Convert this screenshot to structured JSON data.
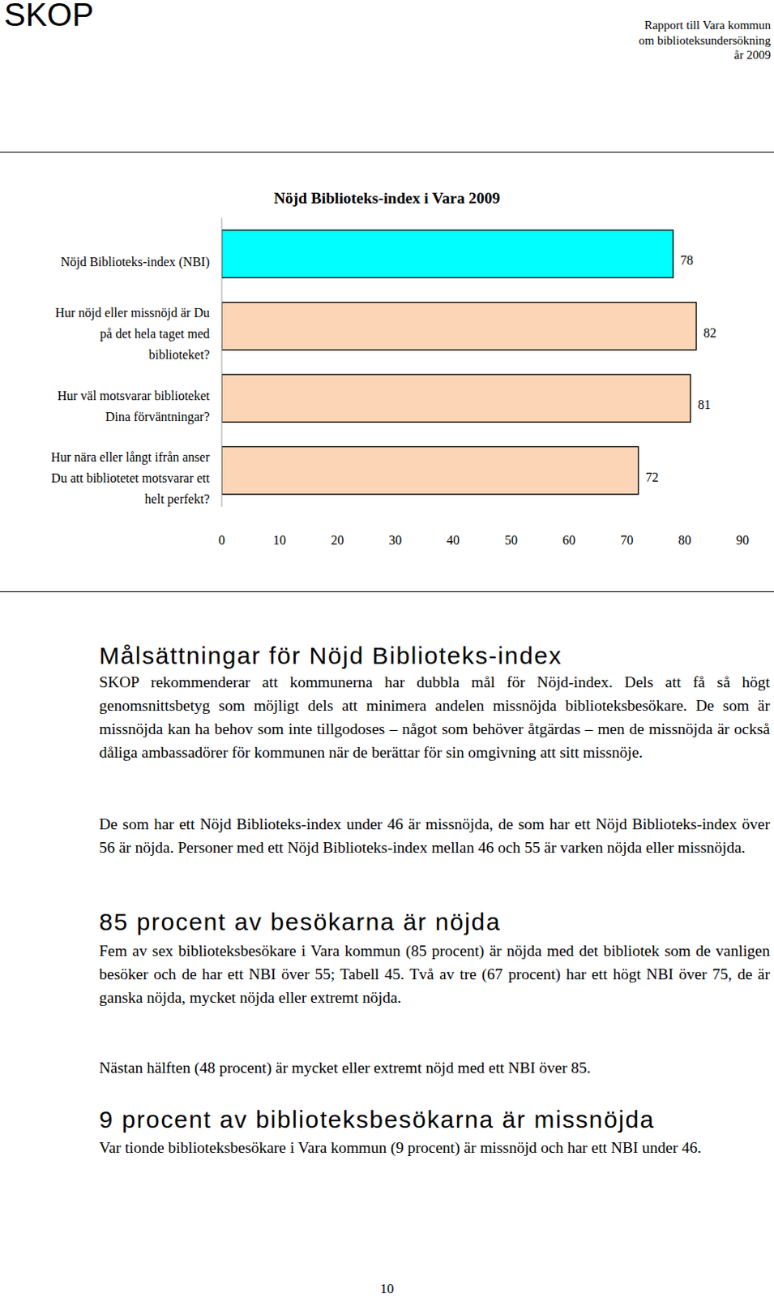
{
  "header": {
    "logo": "SKOP",
    "report": [
      "Rapport till Vara kommun",
      "om biblioteksundersökning",
      "år 2009"
    ]
  },
  "chart_data": {
    "type": "bar",
    "orientation": "horizontal",
    "title": "Nöjd Biblioteks-index i Vara 2009",
    "categories": [
      "Nöjd Biblioteks-index (NBI)",
      "Hur nöjd eller missnöjd är Du på det hela taget med biblioteket?",
      "Hur väl motsvarar biblioteket Dina förväntningar?",
      "Hur nära eller långt ifrån anser Du att bibliotetet motsvarar ett helt perfekt?"
    ],
    "values": [
      78,
      82,
      81,
      72
    ],
    "colors": [
      "#00ffff",
      "#fbd5b5",
      "#fbd5b5",
      "#fbd5b5"
    ],
    "xlim": [
      0,
      90
    ],
    "xticks": [
      0,
      10,
      20,
      30,
      40,
      50,
      60,
      70,
      80,
      90
    ],
    "data_labels": true
  },
  "sections": [
    {
      "heading": "Målsättningar för Nöjd Biblioteks-index",
      "paragraphs": [
        "SKOP rekommenderar att kommunerna har dubbla mål för Nöjd-index. Dels att få så högt genomsnittsbetyg som möjligt dels att minimera andelen missnöjda biblioteksbesökare. De som är missnöjda kan ha behov som inte tillgodoses – något som behöver åtgärdas – men de missnöjda är också dåliga ambassadörer för kommunen när de berättar för sin omgivning att sitt missnöje.",
        "De som har ett Nöjd Biblioteks-index under 46 är missnöjda, de som har ett Nöjd Biblioteks-index över 56 är nöjda. Personer med ett Nöjd Biblioteks-index mellan 46 och 55 är varken nöjda eller missnöjda."
      ]
    },
    {
      "heading": "85 procent av besökarna är nöjda",
      "paragraphs": [
        "Fem av sex biblioteksbesökare i Vara kommun (85 procent) är nöjda med det bibliotek som de vanligen besöker och de har ett NBI över 55; Tabell 45. Två av tre (67 procent) har ett högt NBI över 75, de är ganska nöjda, mycket nöjda eller extremt nöjda.",
        "Nästan hälften (48 procent) är mycket eller extremt nöjd med ett NBI över 85."
      ]
    },
    {
      "heading": "9 procent av biblioteksbesökarna är missnöjda",
      "paragraphs": [
        "Var tionde biblioteksbesökare i Vara kommun (9 procent) är missnöjd och har ett NBI under 46."
      ]
    }
  ],
  "footer": {
    "page": "10"
  }
}
